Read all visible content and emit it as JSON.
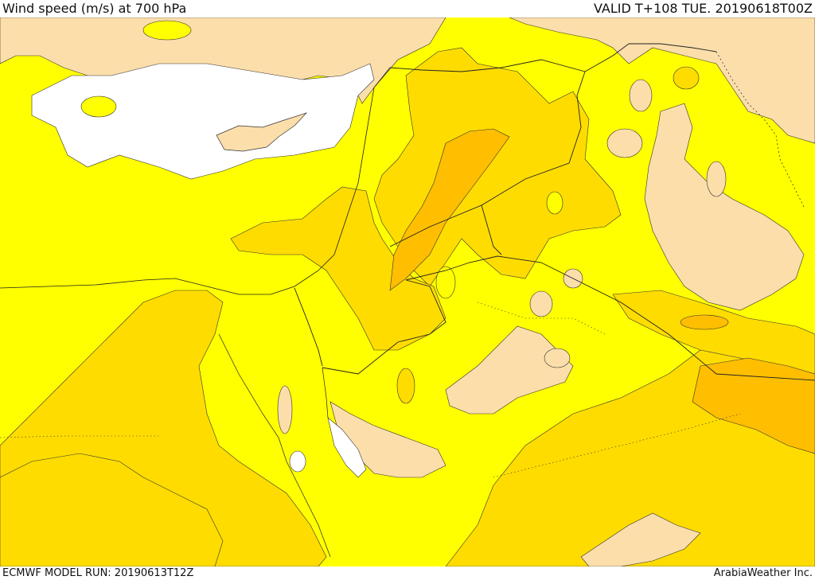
{
  "header": {
    "title": "Wind speed (m/s) at 700 hPa",
    "valid": "VALID T+108 TUE. 20190618T00Z"
  },
  "footer": {
    "model_run": "ECMWF MODEL RUN: 20190613T12Z",
    "credit": "ArabiaWeather Inc."
  },
  "map": {
    "region": "Eastern Mediterranean / Levant / Arabian Peninsula",
    "colors": {
      "below_5": "#ffffff",
      "calm": "#fcdeab",
      "light": "#ffff00",
      "moderate": "#ffdc00",
      "fresh": "#ffbe00"
    }
  }
}
